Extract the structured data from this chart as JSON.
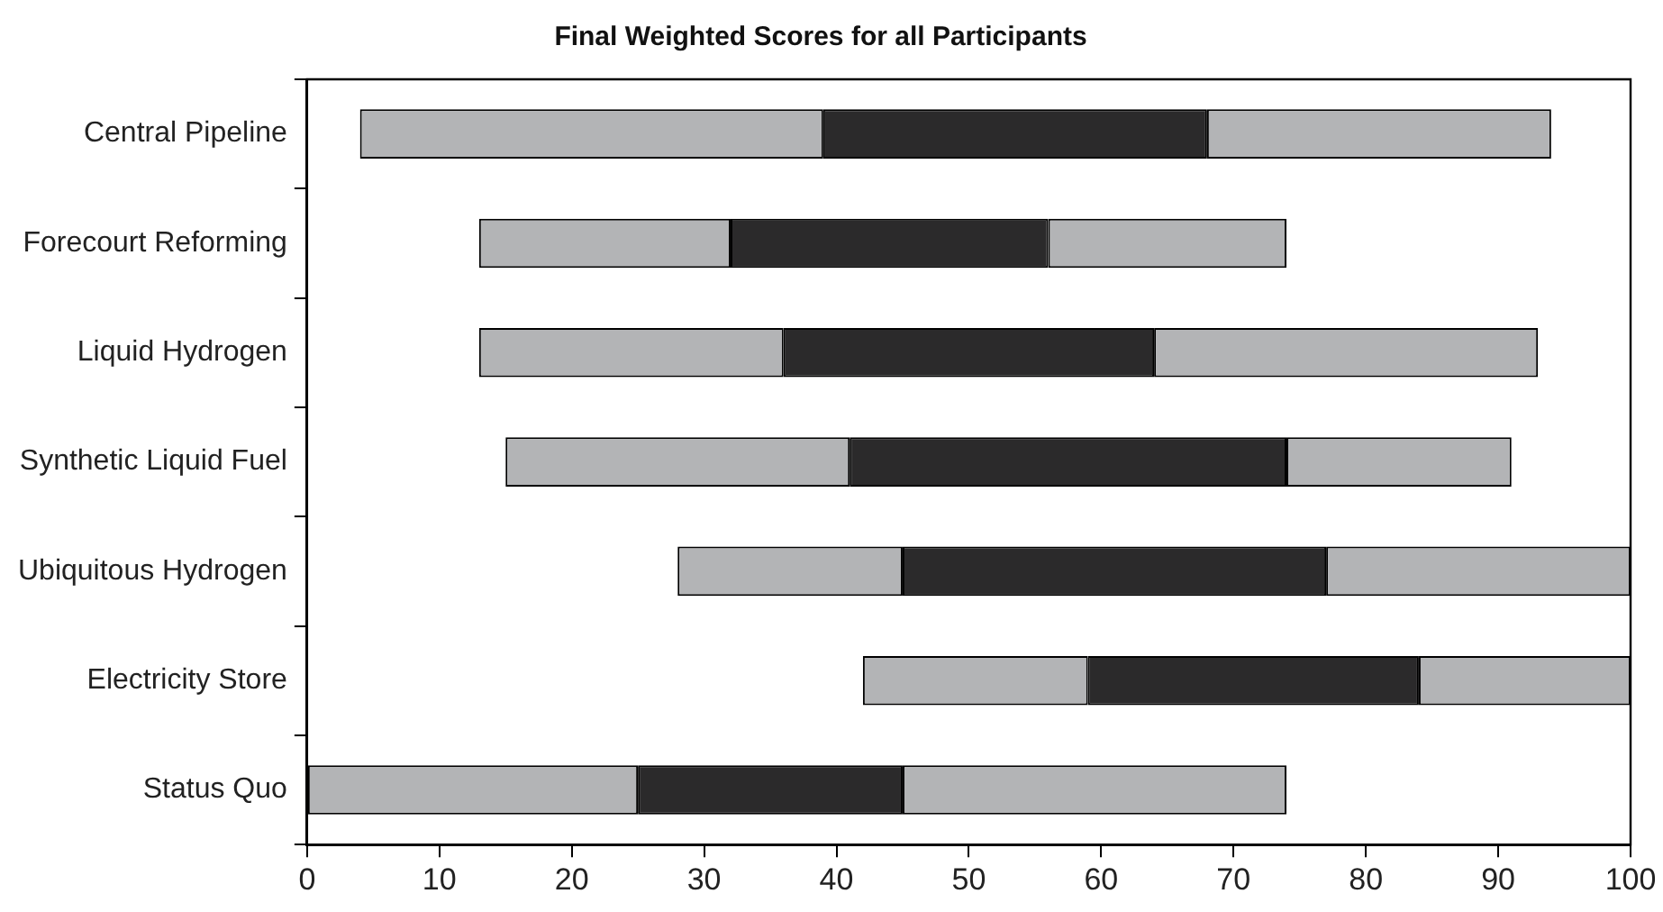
{
  "chart_data": {
    "type": "bar",
    "orientation": "horizontal",
    "title": "Final Weighted Scores for all Participants",
    "categories": [
      "Central Pipeline",
      "Forecourt Reforming",
      "Liquid Hydrogen",
      "Synthetic Liquid Fuel",
      "Ubiquitous Hydrogen",
      "Electricity Store",
      "Status Quo"
    ],
    "series": [
      {
        "color": "#b3b4b6",
        "base": [
          4,
          13,
          13,
          15,
          28,
          42,
          0
        ],
        "values": [
          35,
          19,
          23,
          26,
          17,
          17,
          25
        ]
      },
      {
        "color": "#2b2a2b",
        "base": [
          39,
          32,
          36,
          41,
          45,
          59,
          25
        ],
        "values": [
          29,
          24,
          28,
          33,
          32,
          25,
          20
        ]
      },
      {
        "color": "#b3b4b6",
        "base": [
          68,
          56,
          64,
          74,
          77,
          84,
          45
        ],
        "values": [
          26,
          18,
          29,
          17,
          23,
          16,
          29
        ]
      }
    ],
    "xlim": [
      0,
      100
    ],
    "xticks": [
      0,
      10,
      20,
      30,
      40,
      50,
      60,
      70,
      80,
      90,
      100
    ],
    "grid": false,
    "legend": false
  }
}
